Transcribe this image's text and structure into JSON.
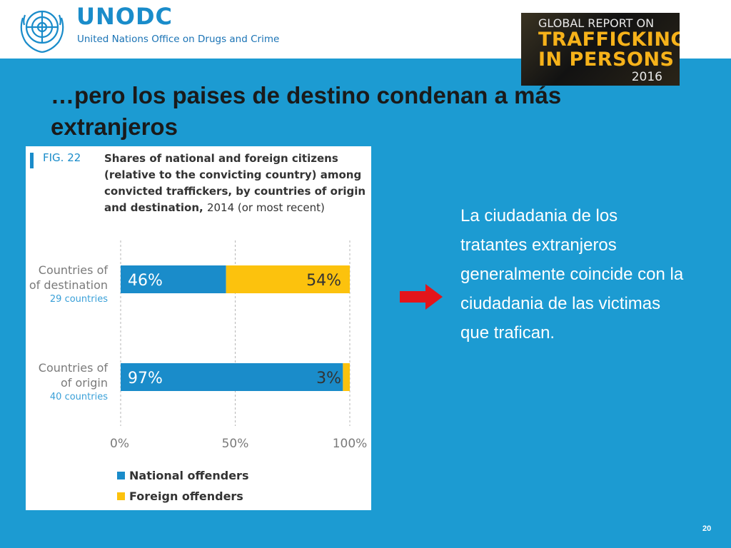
{
  "header": {
    "org_title": "UNODC",
    "org_subtitle": "United Nations Office on Drugs and Crime",
    "report_cover": {
      "line1": "GLOBAL REPORT ON",
      "line2": "TRAFFICKING",
      "line3": "IN PERSONS",
      "year": "2016"
    }
  },
  "slide": {
    "title": "…pero los paises de destino condenan a más extranjeros",
    "body_text": "La ciudadania de los tratantes extranjeros generalmente coincide con la ciudadania de las victimas que trafican.",
    "page_number": "20"
  },
  "colors": {
    "background": "#1c9bd2",
    "national": "#1a8cca",
    "foreign": "#fcc20d",
    "arrow": "#e3151b"
  },
  "icons": [
    "un-emblem-icon",
    "right-arrow-icon"
  ],
  "chart_data": {
    "type": "bar",
    "stacked": true,
    "orientation": "horizontal",
    "fig_label": "FIG. 22",
    "title": "Shares of national and foreign citizens (relative to the convicting country) among convicted traffickers, by countries of origin and destination,",
    "title_tail": "2014 (or most recent)",
    "categories": [
      {
        "name": "Countries of destination",
        "sub": "29 countries"
      },
      {
        "name": "Countries of origin",
        "sub": "40 countries"
      }
    ],
    "series": [
      {
        "name": "National offenders",
        "color": "#1a8cca",
        "values": [
          46,
          97
        ],
        "labels": [
          "46%",
          "97%"
        ]
      },
      {
        "name": "Foreign offenders",
        "color": "#fcc20d",
        "values": [
          54,
          3
        ],
        "labels": [
          "54%",
          "3%"
        ]
      }
    ],
    "xlim": [
      0,
      100
    ],
    "x_ticks": [
      {
        "value": 0,
        "label": "0%"
      },
      {
        "value": 50,
        "label": "50%"
      },
      {
        "value": 100,
        "label": "100%"
      }
    ],
    "grid": true,
    "legend_position": "bottom"
  }
}
